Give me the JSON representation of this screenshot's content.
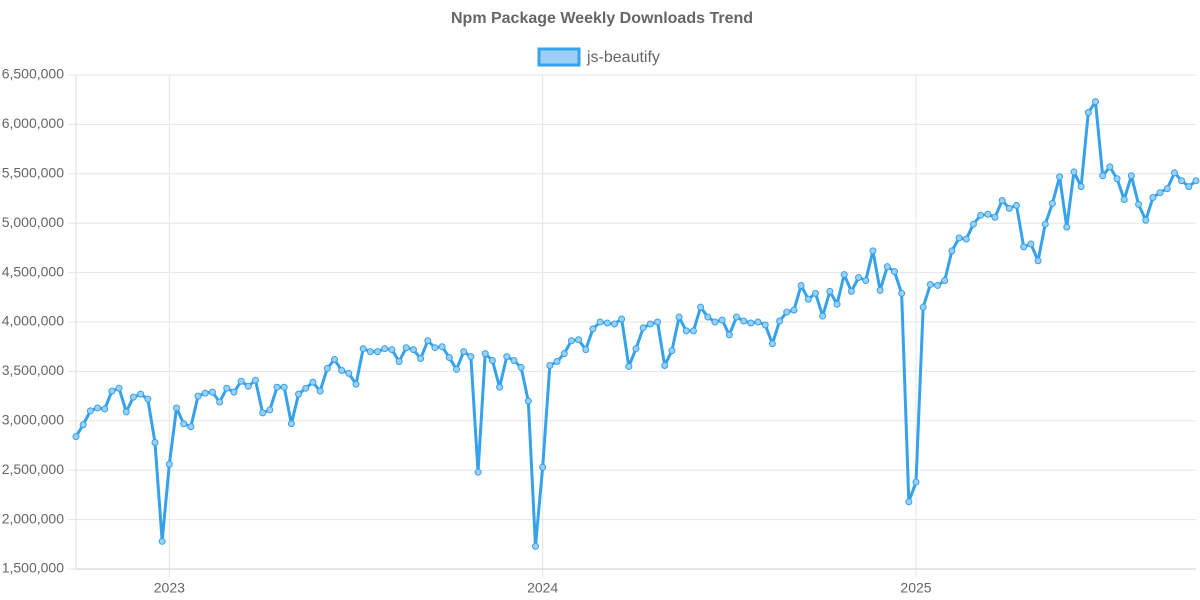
{
  "chart_data": {
    "type": "line",
    "title": "Npm Package Weekly Downloads Trend",
    "categories": [
      null,
      null,
      null,
      null,
      null,
      null,
      null,
      null,
      null,
      null,
      null,
      null,
      null,
      "2023",
      null,
      null,
      null,
      null,
      null,
      null,
      null,
      null,
      null,
      null,
      null,
      null,
      null,
      null,
      null,
      null,
      null,
      null,
      null,
      null,
      null,
      null,
      null,
      null,
      null,
      null,
      null,
      null,
      null,
      null,
      null,
      null,
      null,
      null,
      null,
      null,
      null,
      null,
      null,
      null,
      null,
      null,
      null,
      null,
      null,
      null,
      null,
      null,
      null,
      null,
      null,
      "2024",
      null,
      null,
      null,
      null,
      null,
      null,
      null,
      null,
      null,
      null,
      null,
      null,
      null,
      null,
      null,
      null,
      null,
      null,
      null,
      null,
      null,
      null,
      null,
      null,
      null,
      null,
      null,
      null,
      null,
      null,
      null,
      null,
      null,
      null,
      null,
      null,
      null,
      null,
      null,
      null,
      null,
      null,
      null,
      null,
      null,
      null,
      null,
      null,
      null,
      null,
      null,
      "2025",
      null,
      null,
      null,
      null,
      null,
      null,
      null,
      null,
      null,
      null,
      null,
      null,
      null,
      null,
      null,
      null,
      null,
      null,
      null,
      null,
      null,
      null,
      null,
      null,
      null,
      null,
      null,
      null,
      null,
      null,
      null,
      null,
      null,
      null,
      null,
      null,
      null,
      null,
      null
    ],
    "series": [
      {
        "name": "js-beautify",
        "color": "#36a2eb",
        "fill": "#9ad0f5",
        "values": [
          2840000,
          2960000,
          3100000,
          3130000,
          3120000,
          3300000,
          3330000,
          3090000,
          3240000,
          3270000,
          3220000,
          2780000,
          1780000,
          2560000,
          3130000,
          2970000,
          2940000,
          3250000,
          3280000,
          3290000,
          3190000,
          3330000,
          3290000,
          3400000,
          3350000,
          3410000,
          3080000,
          3110000,
          3340000,
          3340000,
          2970000,
          3270000,
          3330000,
          3390000,
          3300000,
          3530000,
          3620000,
          3510000,
          3480000,
          3370000,
          3730000,
          3700000,
          3700000,
          3730000,
          3720000,
          3600000,
          3740000,
          3720000,
          3630000,
          3810000,
          3740000,
          3750000,
          3640000,
          3520000,
          3700000,
          3650000,
          2480000,
          3680000,
          3610000,
          3340000,
          3650000,
          3610000,
          3540000,
          3200000,
          1730000,
          2530000,
          3560000,
          3600000,
          3680000,
          3810000,
          3820000,
          3720000,
          3930000,
          4000000,
          3990000,
          3980000,
          4030000,
          3550000,
          3730000,
          3940000,
          3980000,
          4000000,
          3560000,
          3710000,
          4050000,
          3910000,
          3910000,
          4150000,
          4050000,
          4000000,
          4020000,
          3870000,
          4050000,
          4010000,
          3990000,
          4000000,
          3970000,
          3780000,
          4010000,
          4100000,
          4120000,
          4370000,
          4230000,
          4290000,
          4060000,
          4310000,
          4180000,
          4480000,
          4310000,
          4450000,
          4420000,
          4720000,
          4320000,
          4560000,
          4510000,
          4290000,
          2180000,
          2380000,
          4150000,
          4380000,
          4370000,
          4420000,
          4720000,
          4850000,
          4840000,
          4990000,
          5080000,
          5090000,
          5060000,
          5230000,
          5150000,
          5180000,
          4760000,
          4790000,
          4620000,
          4990000,
          5200000,
          5470000,
          4960000,
          5520000,
          5370000,
          6120000,
          6230000,
          5480000,
          5570000,
          5450000,
          5240000,
          5480000,
          5190000,
          5030000,
          5260000,
          5310000,
          5350000,
          5510000,
          5430000,
          5370000,
          5430000
        ]
      }
    ],
    "ylim": [
      1500000,
      6500000
    ],
    "yticks": [
      {
        "value": 1500000,
        "label": "1,500,000"
      },
      {
        "value": 2000000,
        "label": "2,000,000"
      },
      {
        "value": 2500000,
        "label": "2,500,000"
      },
      {
        "value": 3000000,
        "label": "3,000,000"
      },
      {
        "value": 3500000,
        "label": "3,500,000"
      },
      {
        "value": 4000000,
        "label": "4,000,000"
      },
      {
        "value": 4500000,
        "label": "4,500,000"
      },
      {
        "value": 5000000,
        "label": "5,000,000"
      },
      {
        "value": 5500000,
        "label": "5,500,000"
      },
      {
        "value": 6000000,
        "label": "6,000,000"
      },
      {
        "value": 6500000,
        "label": "6,500,000"
      }
    ],
    "grid": true
  }
}
